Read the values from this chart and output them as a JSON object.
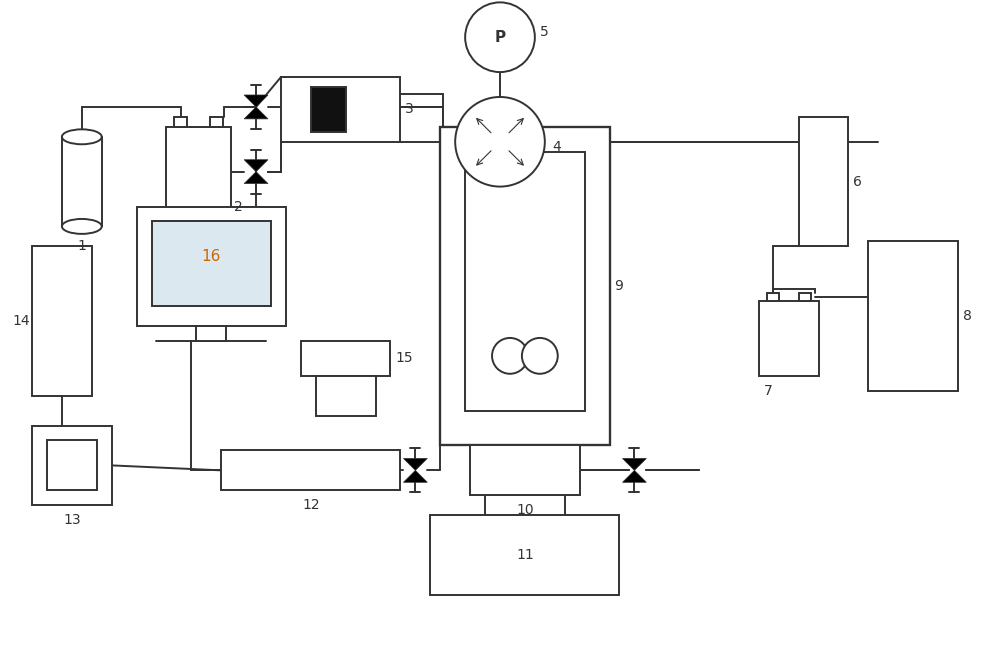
{
  "bg_color": "#ffffff",
  "line_color": "#333333",
  "figsize": [
    10.0,
    6.46
  ],
  "dpi": 100,
  "lw": 1.4
}
